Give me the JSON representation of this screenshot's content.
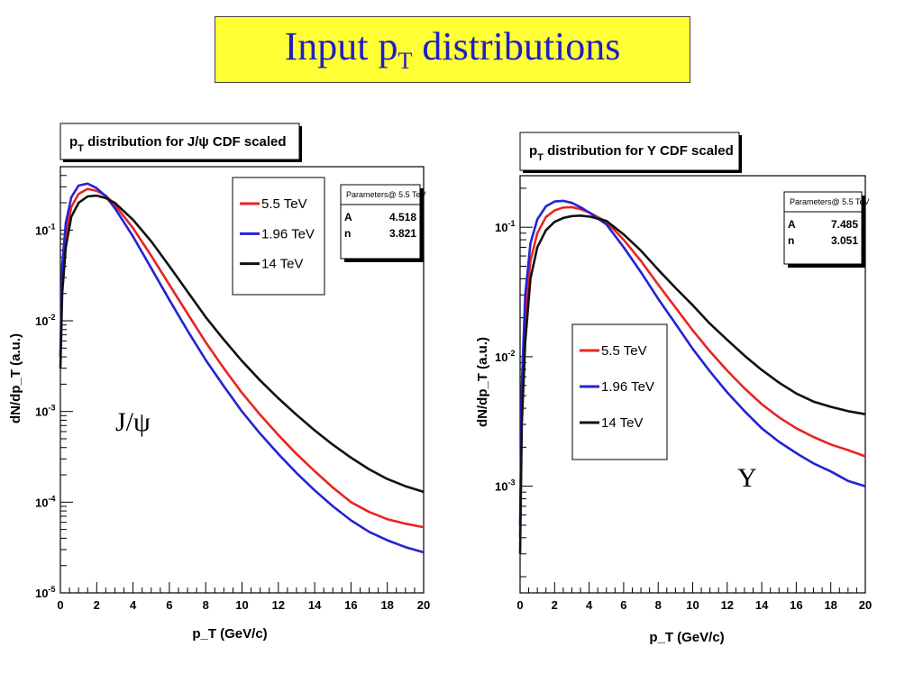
{
  "slide": {
    "title_main": "Input p",
    "title_sub": "T",
    "title_rest": " distributions"
  },
  "chart_data": [
    {
      "type": "line",
      "title": "p_T distribution for J/ψ CDF scaled",
      "title_p": "p",
      "title_sub": "T",
      "title_rest": " distribution for J/ψ CDF scaled",
      "xlabel": "p_T (GeV/c)",
      "ylabel": "dN/dp_T (a.u.)",
      "xlim": [
        0,
        20
      ],
      "ylim": [
        1e-05,
        0.5
      ],
      "yscale": "log",
      "x_ticks": [
        "0",
        "2",
        "4",
        "6",
        "8",
        "10",
        "12",
        "14",
        "16",
        "18",
        "20"
      ],
      "y_ticks": [
        "10^-5",
        "10^-4",
        "10^-3",
        "10^-2",
        "10^-1"
      ],
      "legend_position": "top-right",
      "annotation": "J/ψ",
      "params_box": {
        "header": "Parameters@ 5.5 TeV",
        "rows": [
          [
            "A",
            "4.518"
          ],
          [
            "n",
            "3.821"
          ]
        ]
      },
      "x": [
        0,
        0.1,
        0.3,
        0.6,
        1,
        1.5,
        2,
        2.5,
        3,
        4,
        5,
        6,
        7,
        8,
        9,
        10,
        11,
        12,
        13,
        14,
        15,
        16,
        17,
        18,
        19,
        20
      ],
      "series": [
        {
          "name": "5.5 TeV",
          "color": "#e8251f",
          "values": [
            0.004,
            0.03,
            0.09,
            0.18,
            0.25,
            0.285,
            0.27,
            0.24,
            0.19,
            0.105,
            0.052,
            0.025,
            0.012,
            0.0058,
            0.003,
            0.0016,
            0.00092,
            0.00055,
            0.00034,
            0.00022,
            0.000145,
            0.0001,
            7.8e-05,
            6.5e-05,
            5.8e-05,
            5.3e-05
          ]
        },
        {
          "name": "1.96 TeV",
          "color": "#2323d6",
          "values": [
            0.004,
            0.04,
            0.12,
            0.23,
            0.31,
            0.325,
            0.29,
            0.235,
            0.175,
            0.085,
            0.038,
            0.017,
            0.0078,
            0.0037,
            0.0019,
            0.001,
            0.00057,
            0.00034,
            0.00021,
            0.000135,
            9e-05,
            6.3e-05,
            4.7e-05,
            3.8e-05,
            3.2e-05,
            2.8e-05
          ]
        },
        {
          "name": "14 TeV",
          "color": "#111111",
          "values": [
            0.003,
            0.02,
            0.065,
            0.14,
            0.2,
            0.235,
            0.24,
            0.225,
            0.2,
            0.13,
            0.075,
            0.04,
            0.021,
            0.011,
            0.0062,
            0.0036,
            0.0022,
            0.0014,
            0.00092,
            0.00062,
            0.00043,
            0.00031,
            0.00023,
            0.00018,
            0.00015,
            0.00013
          ]
        }
      ]
    },
    {
      "type": "line",
      "title": "p_T distribution for Υ CDF scaled",
      "title_p": "p",
      "title_sub": "T",
      "title_rest": " distribution for Υ CDF scaled",
      "xlabel": "p_T (GeV/c)",
      "ylabel": "dN/dp_T (a.u.)",
      "xlim": [
        0,
        20
      ],
      "ylim": [
        0.00015,
        0.25
      ],
      "yscale": "log",
      "x_ticks": [
        "0",
        "2",
        "4",
        "6",
        "8",
        "10",
        "12",
        "14",
        "16",
        "18",
        "20"
      ],
      "y_ticks": [
        "10^-3",
        "10^-2",
        "10^-1"
      ],
      "legend_position": "center-left",
      "annotation": "Υ",
      "params_box": {
        "header": "Parameters@ 5.5 TeV",
        "rows": [
          [
            "A",
            "7.485"
          ],
          [
            "n",
            "3.051"
          ]
        ]
      },
      "x": [
        0,
        0.1,
        0.3,
        0.6,
        1,
        1.5,
        2,
        2.5,
        3,
        3.5,
        4,
        5,
        6,
        7,
        8,
        9,
        10,
        11,
        12,
        13,
        14,
        15,
        16,
        17,
        18,
        19,
        20
      ],
      "series": [
        {
          "name": "5.5 TeV",
          "color": "#e8251f",
          "values": [
            0.0004,
            0.004,
            0.02,
            0.055,
            0.09,
            0.12,
            0.135,
            0.142,
            0.143,
            0.138,
            0.13,
            0.11,
            0.08,
            0.055,
            0.036,
            0.024,
            0.016,
            0.011,
            0.0078,
            0.0057,
            0.0043,
            0.0034,
            0.0028,
            0.0024,
            0.0021,
            0.0019,
            0.0017
          ]
        },
        {
          "name": "1.96 TeV",
          "color": "#2323d6",
          "values": [
            0.0005,
            0.006,
            0.03,
            0.075,
            0.115,
            0.145,
            0.158,
            0.16,
            0.154,
            0.143,
            0.13,
            0.105,
            0.07,
            0.045,
            0.028,
            0.018,
            0.0115,
            0.0077,
            0.0053,
            0.0038,
            0.0028,
            0.0022,
            0.0018,
            0.0015,
            0.0013,
            0.0011,
            0.001
          ]
        },
        {
          "name": "14 TeV",
          "color": "#111111",
          "values": [
            0.0003,
            0.003,
            0.013,
            0.04,
            0.07,
            0.095,
            0.11,
            0.118,
            0.122,
            0.123,
            0.121,
            0.112,
            0.088,
            0.066,
            0.047,
            0.034,
            0.025,
            0.018,
            0.0135,
            0.0102,
            0.0079,
            0.0063,
            0.0052,
            0.0045,
            0.0041,
            0.0038,
            0.0036
          ]
        }
      ]
    }
  ]
}
